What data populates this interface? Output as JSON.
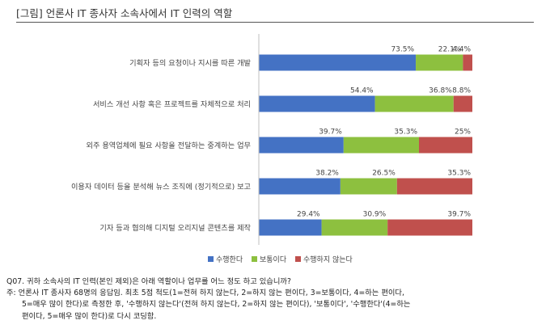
{
  "title": "[그림] 언론사 IT 종사자 소속사에서 IT 인력의 역할",
  "chart_data": {
    "type": "bar",
    "orientation": "horizontal",
    "stacked": true,
    "unit": "%",
    "categories": [
      "기획자 등의 요청이나 지시를 따른 개발",
      "서비스 개선 사항 혹은 프로젝트를 자체적으로 처리",
      "외주 용역업체에 필요 사항을 전달하는 중계하는 업무",
      "이용자 데이터 등을 분석해 뉴스 조직에 (정기적으로) 보고",
      "기자 등과 협의해 디지털 오리지널 콘텐츠를 제작"
    ],
    "series": [
      {
        "name": "수행한다",
        "color": "#4472c4",
        "values": [
          73.5,
          54.4,
          39.7,
          38.2,
          29.4
        ],
        "labels": [
          "73.5%",
          "54.4%",
          "39.7%",
          "38.2%",
          "29.4%"
        ]
      },
      {
        "name": "보통이다",
        "color": "#8dc03f",
        "values": [
          22.1,
          36.8,
          35.3,
          26.5,
          30.9
        ],
        "labels": [
          "22.1%",
          "36.8%",
          "35.3%",
          "26.5%",
          "30.9%"
        ]
      },
      {
        "name": "수행하지 않는다",
        "color": "#c0504d",
        "values": [
          4.4,
          8.8,
          25,
          35.3,
          39.7
        ],
        "labels": [
          "4.4%",
          "8.8%",
          "25%",
          "35.3%",
          "39.7%"
        ]
      }
    ],
    "xlim": [
      0,
      100
    ],
    "legend_position": "bottom",
    "grid": false
  },
  "notes": {
    "question": "Q07. 귀하 소속사의 IT 인력(본인 제외)은 아래 역할이나 업무를 어느 정도 하고 있습니까?",
    "note_lines": [
      "주: 언론사 IT 종사자 68명의 응답임. 최초 5점 척도(1=전혀 하지 않는다, 2=하지 않는 편이다, 3=보통이다, 4=하는 편이다,",
      "5=매우 많이 한다)로 측정한 후, '수행하지 않는다'(전혀 하지 않는다, 2=하지 않는 편이다), '보통이다', '수행한다'(4=하는",
      "편이다, 5=매우 많이 한다)로 다시 코딩함."
    ]
  }
}
